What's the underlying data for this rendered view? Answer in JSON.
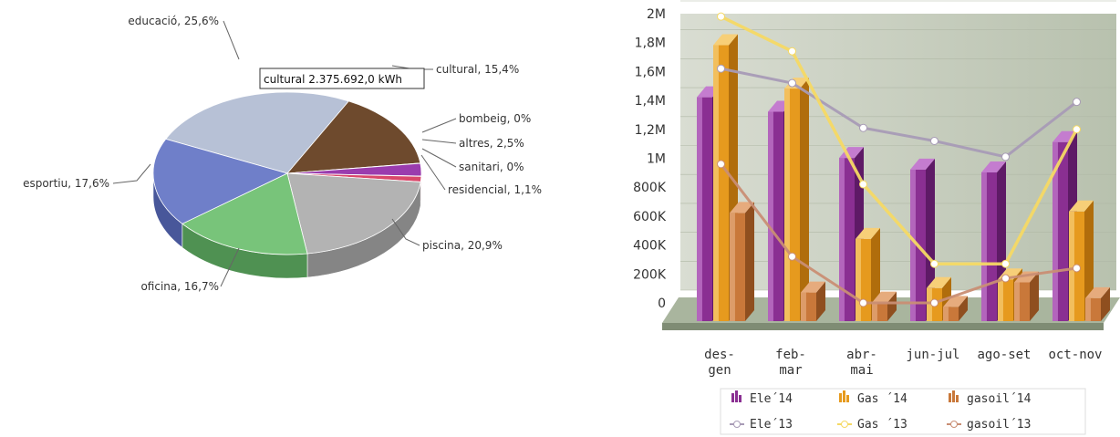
{
  "chart_data": [
    {
      "type": "pie",
      "slices": [
        {
          "label": "educació, 25,6%",
          "value": 25.6,
          "color": "#b7c1d6",
          "side": "#8b95ab"
        },
        {
          "label": "cultural, 15,4%",
          "value": 15.4,
          "color": "#6e4a2d",
          "side": "#4b311c"
        },
        {
          "label": "bombeig, 0%",
          "value": 0.05,
          "color": "#9a3cae",
          "side": "#6d2680"
        },
        {
          "label": "altres, 2,5%",
          "value": 2.5,
          "color": "#9a3cae",
          "side": "#6d2680"
        },
        {
          "label": "sanitari, 0%",
          "value": 0.05,
          "color": "#e04a4a",
          "side": "#a42f2f"
        },
        {
          "label": "residencial, 1,1%",
          "value": 1.1,
          "color": "#d9486a",
          "side": "#9e2f49"
        },
        {
          "label": "piscina, 20,9%",
          "value": 20.9,
          "color": "#b3b3b3",
          "side": "#858585"
        },
        {
          "label": "oficina, 16,7%",
          "value": 16.7,
          "color": "#78c47a",
          "side": "#4f9152"
        },
        {
          "label": "esportiu, 17,6%",
          "value": 17.6,
          "color": "#6f7fc9",
          "side": "#48579a"
        }
      ],
      "tooltip": "cultural 2.375.692,0 kWh"
    },
    {
      "type": "bar",
      "categories": [
        [
          "des-",
          "gen"
        ],
        [
          "feb-",
          "mar"
        ],
        [
          "abr-",
          "mai"
        ],
        [
          "jun-jul"
        ],
        [
          "ago-set"
        ],
        [
          "oct-nov"
        ]
      ],
      "ylim": [
        0,
        2000000
      ],
      "yticks": [
        {
          "value": 0,
          "label": "0"
        },
        {
          "value": 200000,
          "label": "200K"
        },
        {
          "value": 400000,
          "label": "400K"
        },
        {
          "value": 600000,
          "label": "600K"
        },
        {
          "value": 800000,
          "label": "800K"
        },
        {
          "value": 1000000,
          "label": "1M"
        },
        {
          "value": 1200000,
          "label": "1,2M"
        },
        {
          "value": 1400000,
          "label": "1,4M"
        },
        {
          "value": 1600000,
          "label": "1,6M"
        },
        {
          "value": 1800000,
          "label": "1,8M"
        },
        {
          "value": 2000000,
          "label": "2M"
        }
      ],
      "bar_series": [
        {
          "name": "Ele´14",
          "values": [
            1460000,
            1360000,
            1040000,
            960000,
            940000,
            1150000
          ],
          "color": "#8a2f92",
          "light": "#c47ccf",
          "dark": "#5e1a66"
        },
        {
          "name": "Gas ´14",
          "values": [
            1820000,
            1520000,
            480000,
            140000,
            200000,
            670000
          ],
          "color": "#e69a1e",
          "light": "#f7cf78",
          "dark": "#b06d0c"
        },
        {
          "name": "gasoil´14",
          "values": [
            660000,
            110000,
            40000,
            10000,
            180000,
            70000
          ],
          "color": "#c9783a",
          "light": "#e6ab7d",
          "dark": "#8f4f1f"
        }
      ],
      "line_series": [
        {
          "name": "Ele´13",
          "values": [
            1620000,
            1520000,
            1210000,
            1120000,
            1010000,
            1390000
          ],
          "color": "#a89bb6"
        },
        {
          "name": "Gas ´13",
          "values": [
            1980000,
            1740000,
            820000,
            270000,
            270000,
            1200000
          ],
          "color": "#f5d964"
        },
        {
          "name": "gasoil´13",
          "values": [
            960000,
            320000,
            0,
            0,
            170000,
            240000
          ],
          "color": "#c98e74"
        }
      ],
      "legend_position": "bottom"
    }
  ]
}
